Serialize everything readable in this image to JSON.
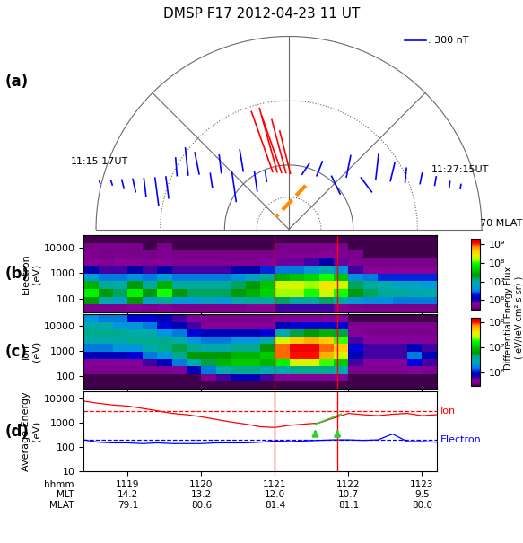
{
  "title": "DMSP F17 2012-04-23 11 UT",
  "colorbar_label": "Differential Energy Flux\n( eV/(eV cm² s sr) )",
  "chart_data": [
    {
      "type": "vector_polar",
      "label": "(a)",
      "mlat_lim": [
        60,
        90
      ],
      "rings": [
        {
          "mlat": 60,
          "line_style": "solid"
        },
        {
          "mlat": 70,
          "line_style": "dotted"
        },
        {
          "mlat": 80,
          "line_style": "solid"
        },
        {
          "mlat": 85,
          "line_style": "dotted"
        }
      ],
      "spokes_mlt": [
        6,
        9,
        12,
        15,
        18
      ],
      "start_label": "11:15:17UT",
      "end_label": "11:27:15UT",
      "mlat_label": "70 MLAT",
      "scale_nT": 300,
      "scale_label": ": 300 nT",
      "vectors": [
        {
          "color": "blue",
          "mlt": [
            17.05,
            16.98,
            16.9,
            16.81,
            16.71,
            16.6,
            16.46,
            16.29,
            16.11,
            15.89,
            15.64,
            15.34,
            14.98,
            14.54,
            14.05,
            13.47
          ],
          "mlat": [
            59.6,
            61.3,
            62.9,
            64.5,
            66.1,
            67.7,
            69.2,
            70.7,
            72.2,
            73.6,
            75.0,
            76.3,
            77.4,
            78.5,
            79.5,
            80.2
          ],
          "bx": [
            10,
            20,
            30,
            40,
            30,
            50,
            40,
            -20,
            -40,
            -60,
            30,
            -30,
            60,
            -50,
            40,
            20
          ],
          "by": [
            -30,
            -60,
            -120,
            -180,
            -250,
            -380,
            -300,
            250,
            380,
            300,
            -200,
            250,
            -420,
            300,
            -280,
            -150
          ]
        },
        {
          "color": "red",
          "mlt": [
            13.05,
            12.77,
            12.49,
            12.2,
            11.9
          ],
          "mlat": [
            80.7,
            80.9,
            81.1,
            81.2,
            81.3
          ],
          "bx": [
            -300,
            -250,
            -280,
            -200,
            -150
          ],
          "by": [
            850,
            900,
            800,
            750,
            600
          ]
        },
        {
          "color": "blue",
          "mlt": [
            11.1,
            10.17,
            9.41,
            8.82,
            8.37,
            8.0,
            7.7,
            7.47,
            7.28,
            7.12,
            6.98,
            6.89
          ],
          "mlat": [
            81.2,
            80.6,
            79.4,
            77.9,
            76.2,
            74.4,
            72.5,
            70.5,
            68.4,
            66.3,
            64.2,
            62.6
          ],
          "bx": [
            100,
            80,
            120,
            60,
            150,
            40,
            60,
            20,
            30,
            20,
            10,
            10
          ],
          "by": [
            150,
            200,
            -250,
            300,
            -200,
            350,
            250,
            200,
            150,
            120,
            80,
            60
          ]
        }
      ],
      "highlight": {
        "color": "darkorange",
        "line_style": "dashed",
        "mlt": [
          10.6,
          15.0
        ],
        "mlat": [
          82.7,
          87.2
        ]
      }
    },
    {
      "type": "spectrogram",
      "label": "(b)",
      "ylabel": "Electron\n(eV)",
      "log": "y",
      "tick_labels": "y",
      "xlim": [
        18.4,
        23.2
      ],
      "ylim": [
        30,
        30000
      ],
      "xticks": [
        19,
        20,
        21,
        22,
        23
      ],
      "yticks": [
        100,
        1000,
        10000
      ],
      "markers_x": [
        21.0,
        21.85
      ],
      "marker_color": "red",
      "x_edges": [
        18.4,
        18.6,
        18.8,
        19.0,
        19.2,
        19.4,
        19.6,
        19.8,
        20.0,
        20.2,
        20.4,
        20.6,
        20.8,
        21.0,
        21.2,
        21.4,
        21.6,
        21.8,
        22.0,
        22.2,
        22.4,
        22.6,
        22.8,
        23.0,
        23.2
      ],
      "y_edges": [
        30,
        60,
        120,
        240,
        480,
        950,
        1900,
        3800,
        7500,
        15000,
        30000
      ],
      "cells": [
        [
          500000.0,
          500000.0,
          500000.0,
          600000.0,
          500000.0,
          600000.0,
          500000.0,
          500000.0,
          500000.0,
          500000.0,
          500000.0,
          600000.0,
          600000.0,
          800000.0,
          800000.0,
          800000.0,
          800000.0,
          600000.0,
          500000.0,
          400000.0,
          400000.0,
          400000.0,
          400000.0,
          400000.0
        ],
        [
          20000000.0,
          8000000.0,
          6000000.0,
          20000000.0,
          6000000.0,
          10000000.0,
          5000000.0,
          5000000.0,
          6000000.0,
          5000000.0,
          8000000.0,
          10000000.0,
          10000000.0,
          15000000.0,
          10000000.0,
          10000000.0,
          15000000.0,
          10000000.0,
          5000000.0,
          4000000.0,
          4000000.0,
          3000000.0,
          3000000.0,
          3000000.0
        ],
        [
          80000000.0,
          20000000.0,
          15000000.0,
          80000000.0,
          20000000.0,
          100000000.0,
          20000000.0,
          15000000.0,
          15000000.0,
          15000000.0,
          20000000.0,
          30000000.0,
          50000000.0,
          150000000.0,
          150000000.0,
          100000000.0,
          200000000.0,
          100000000.0,
          20000000.0,
          15000000.0,
          10000000.0,
          10000000.0,
          8000000.0,
          8000000.0
        ],
        [
          30000000.0,
          10000000.0,
          8000000.0,
          20000000.0,
          10000000.0,
          30000000.0,
          10000000.0,
          10000000.0,
          10000000.0,
          10000000.0,
          15000000.0,
          20000000.0,
          40000000.0,
          200000000.0,
          200000000.0,
          150000000.0,
          300000000.0,
          200000000.0,
          15000000.0,
          10000000.0,
          8000000.0,
          6000000.0,
          6000000.0,
          5000000.0
        ],
        [
          5000000.0,
          3000000.0,
          3000000.0,
          4000000.0,
          3000000.0,
          5000000.0,
          3000000.0,
          3000000.0,
          3000000.0,
          3000000.0,
          4000000.0,
          6000000.0,
          10000000.0,
          30000000.0,
          40000000.0,
          50000000.0,
          100000000.0,
          40000000.0,
          4000000.0,
          3000000.0,
          2000000.0,
          2000000.0,
          2000000.0,
          2000000.0
        ],
        [
          1000000.0,
          800000.0,
          800000.0,
          1000000.0,
          800000.0,
          1000000.0,
          800000.0,
          800000.0,
          800000.0,
          800000.0,
          1000000.0,
          1000000.0,
          2000000.0,
          3000000.0,
          3000000.0,
          5000000.0,
          8000000.0,
          4000000.0,
          800000.0,
          600000.0,
          600000.0,
          600000.0,
          600000.0,
          600000.0
        ],
        [
          600000.0,
          500000.0,
          600000.0,
          600000.0,
          500000.0,
          600000.0,
          500000.0,
          500000.0,
          500000.0,
          500000.0,
          500000.0,
          500000.0,
          600000.0,
          700000.0,
          700000.0,
          800000.0,
          1000000.0,
          700000.0,
          500000.0,
          400000.0,
          400000.0,
          400000.0,
          400000.0,
          400000.0
        ],
        [
          500000.0,
          400000.0,
          500000.0,
          400000.0,
          400000.0,
          500000.0,
          400000.0,
          400000.0,
          400000.0,
          400000.0,
          400000.0,
          400000.0,
          400000.0,
          500000.0,
          500000.0,
          500000.0,
          600000.0,
          500000.0,
          400000.0,
          300000.0,
          300000.0,
          300000.0,
          300000.0,
          300000.0
        ],
        [
          400000.0,
          400000.0,
          400000.0,
          400000.0,
          300000.0,
          400000.0,
          300000.0,
          300000.0,
          300000.0,
          300000.0,
          300000.0,
          300000.0,
          300000.0,
          400000.0,
          400000.0,
          400000.0,
          400000.0,
          400000.0,
          300000.0,
          300000.0,
          300000.0,
          300000.0,
          300000.0,
          300000.0
        ],
        [
          300000.0,
          300000.0,
          300000.0,
          300000.0,
          300000.0,
          300000.0,
          300000.0,
          300000.0,
          300000.0,
          300000.0,
          300000.0,
          300000.0,
          300000.0,
          300000.0,
          300000.0,
          300000.0,
          300000.0,
          300000.0,
          300000.0,
          300000.0,
          300000.0,
          300000.0,
          300000.0,
          300000.0
        ]
      ],
      "colorbar_lim": [
        300000,
        2000000000
      ],
      "colorbar_ticks": [
        {
          "value": 1000000,
          "label": "10⁶"
        },
        {
          "value": 10000000,
          "label": "10⁷"
        },
        {
          "value": 100000000,
          "label": "10⁸"
        },
        {
          "value": 1000000000,
          "label": "10⁹"
        }
      ]
    },
    {
      "type": "spectrogram",
      "label": "(c)",
      "ylabel": "Ion\n(eV)",
      "log": "y",
      "tick_labels": "y",
      "xlim": [
        18.4,
        23.2
      ],
      "ylim": [
        30,
        30000
      ],
      "xticks": [
        19,
        20,
        21,
        22,
        23
      ],
      "yticks": [
        100,
        1000,
        10000
      ],
      "markers_x": [
        21.0,
        21.85
      ],
      "marker_color": "red",
      "x_edges": [
        18.4,
        18.6,
        18.8,
        19.0,
        19.2,
        19.4,
        19.6,
        19.8,
        20.0,
        20.2,
        20.4,
        20.6,
        20.8,
        21.0,
        21.2,
        21.4,
        21.6,
        21.8,
        22.0,
        22.2,
        22.4,
        22.6,
        22.8,
        23.0,
        23.2
      ],
      "y_edges": [
        30,
        60,
        120,
        240,
        480,
        950,
        1900,
        3800,
        7500,
        15000,
        30000
      ],
      "cells": [
        [
          300000.0,
          300000.0,
          300000.0,
          300000.0,
          300000.0,
          300000.0,
          300000.0,
          300000.0,
          300000.0,
          300000.0,
          300000.0,
          300000.0,
          300000.0,
          300000.0,
          300000.0,
          300000.0,
          300000.0,
          300000.0,
          300000.0,
          300000.0,
          300000.0,
          300000.0,
          300000.0,
          300000.0
        ],
        [
          300000.0,
          300000.0,
          300000.0,
          300000.0,
          300000.0,
          300000.0,
          300000.0,
          300000.0,
          400000.0,
          600000.0,
          800000.0,
          800000.0,
          600000.0,
          500000.0,
          500000.0,
          500000.0,
          500000.0,
          500000.0,
          300000.0,
          300000.0,
          300000.0,
          300000.0,
          300000.0,
          300000.0
        ],
        [
          400000.0,
          400000.0,
          400000.0,
          400000.0,
          400000.0,
          400000.0,
          500000.0,
          800000.0,
          1500000.0,
          3000000.0,
          4000000.0,
          4000000.0,
          3000000.0,
          3000000.0,
          4000000.0,
          4000000.0,
          4000000.0,
          3000000.0,
          400000.0,
          400000.0,
          400000.0,
          400000.0,
          500000.0,
          400000.0
        ],
        [
          500000.0,
          500000.0,
          500000.0,
          500000.0,
          600000.0,
          800000.0,
          1500000.0,
          3000000.0,
          5000000.0,
          8000000.0,
          10000000.0,
          10000000.0,
          8000000.0,
          15000000.0,
          30000000.0,
          30000000.0,
          20000000.0,
          10000000.0,
          600000.0,
          500000.0,
          500000.0,
          500000.0,
          1000000.0,
          600000.0
        ],
        [
          800000.0,
          800000.0,
          800000.0,
          1000000.0,
          1500000.0,
          2000000.0,
          4000000.0,
          6000000.0,
          6000000.0,
          6000000.0,
          8000000.0,
          8000000.0,
          10000000.0,
          80000000.0,
          100000000.0,
          100000000.0,
          60000000.0,
          30000000.0,
          800000.0,
          600000.0,
          600000.0,
          600000.0,
          1500000.0,
          800000.0
        ],
        [
          1500000.0,
          1500000.0,
          2000000.0,
          2000000.0,
          3000000.0,
          4000000.0,
          5000000.0,
          4000000.0,
          3000000.0,
          3000000.0,
          4000000.0,
          4000000.0,
          6000000.0,
          80000000.0,
          120000000.0,
          120000000.0,
          80000000.0,
          50000000.0,
          1000000.0,
          600000.0,
          600000.0,
          600000.0,
          800000.0,
          600000.0
        ],
        [
          3000000.0,
          3000000.0,
          3000000.0,
          4000000.0,
          4000000.0,
          4000000.0,
          3000000.0,
          2000000.0,
          1500000.0,
          1500000.0,
          2000000.0,
          2000000.0,
          3000000.0,
          30000000.0,
          50000000.0,
          60000000.0,
          50000000.0,
          20000000.0,
          600000.0,
          500000.0,
          500000.0,
          500000.0,
          500000.0,
          500000.0
        ],
        [
          4000000.0,
          4000000.0,
          4000000.0,
          3000000.0,
          3000000.0,
          2000000.0,
          1500000.0,
          1000000.0,
          800000.0,
          800000.0,
          800000.0,
          800000.0,
          1000000.0,
          3000000.0,
          5000000.0,
          6000000.0,
          8000000.0,
          5000000.0,
          500000.0,
          400000.0,
          400000.0,
          400000.0,
          400000.0,
          400000.0
        ],
        [
          3000000.0,
          3000000.0,
          2000000.0,
          2000000.0,
          1500000.0,
          1000000.0,
          800000.0,
          600000.0,
          500000.0,
          500000.0,
          500000.0,
          500000.0,
          500000.0,
          800000.0,
          1000000.0,
          1000000.0,
          1000000.0,
          1000000.0,
          400000.0,
          400000.0,
          400000.0,
          400000.0,
          400000.0,
          400000.0
        ],
        [
          2000000.0,
          1500000.0,
          1500000.0,
          1000000.0,
          1000000.0,
          800000.0,
          600000.0,
          500000.0,
          400000.0,
          400000.0,
          400000.0,
          400000.0,
          400000.0,
          500000.0,
          500000.0,
          500000.0,
          500000.0,
          500000.0,
          300000.0,
          300000.0,
          300000.0,
          300000.0,
          300000.0,
          300000.0
        ]
      ],
      "colorbar_lim": [
        300000,
        150000000
      ],
      "colorbar_ticks": [
        {
          "value": 1000000,
          "label": "10⁶"
        },
        {
          "value": 10000000,
          "label": "10⁷"
        },
        {
          "value": 100000000,
          "label": "10⁸"
        }
      ]
    },
    {
      "type": "line",
      "label": "(d)",
      "ylabel": "Average Energy\n(eV)",
      "log": "y",
      "xlim": [
        18.4,
        23.2
      ],
      "ylim": [
        10,
        20000
      ],
      "xticks": [
        {
          "value": 19,
          "label": "1119\n14.2\n79.1"
        },
        {
          "value": 20,
          "label": "1120\n13.2\n80.6"
        },
        {
          "value": 21,
          "label": "1121\n12.0\n81.4"
        },
        {
          "value": 22,
          "label": "1122\n10.7\n81.1"
        },
        {
          "value": 23,
          "label": "1123\n9.5\n80.0"
        }
      ],
      "yticks": [
        10,
        100,
        1000,
        10000
      ],
      "xtick_header": "hhmm\nMLT\nMLAT",
      "markers_x": [
        21.0,
        21.85
      ],
      "marker_color": "red",
      "x": [
        18.4,
        18.6,
        18.8,
        19.0,
        19.2,
        19.4,
        19.6,
        19.8,
        20.0,
        20.2,
        20.4,
        20.6,
        20.8,
        21.0,
        21.2,
        21.4,
        21.6,
        21.8,
        22.0,
        22.2,
        22.4,
        22.6,
        22.8,
        23.0,
        23.2
      ],
      "series": [
        {
          "name": "Ion",
          "color": "red",
          "ref": 3000,
          "values": [
            8000,
            6500,
            5500,
            5000,
            4000,
            3200,
            2500,
            2200,
            1800,
            1400,
            1100,
            900,
            700,
            650,
            800,
            900,
            1000,
            1600,
            2500,
            2200,
            2000,
            2300,
            2500,
            2000,
            2200
          ]
        },
        {
          "name": "Electron",
          "color": "blue",
          "ref": 200,
          "values": [
            200,
            160,
            150,
            150,
            140,
            150,
            140,
            140,
            140,
            150,
            150,
            150,
            160,
            180,
            170,
            180,
            190,
            200,
            200,
            190,
            200,
            350,
            170,
            170,
            160
          ]
        }
      ],
      "connector": {
        "color": "limegreen",
        "x": [
          21.55,
          21.9
        ],
        "values": [
          900,
          2300
        ]
      },
      "arrows": {
        "color": "limegreen",
        "x": [
          21.55,
          21.85
        ],
        "from": 300,
        "to": 700
      }
    }
  ]
}
